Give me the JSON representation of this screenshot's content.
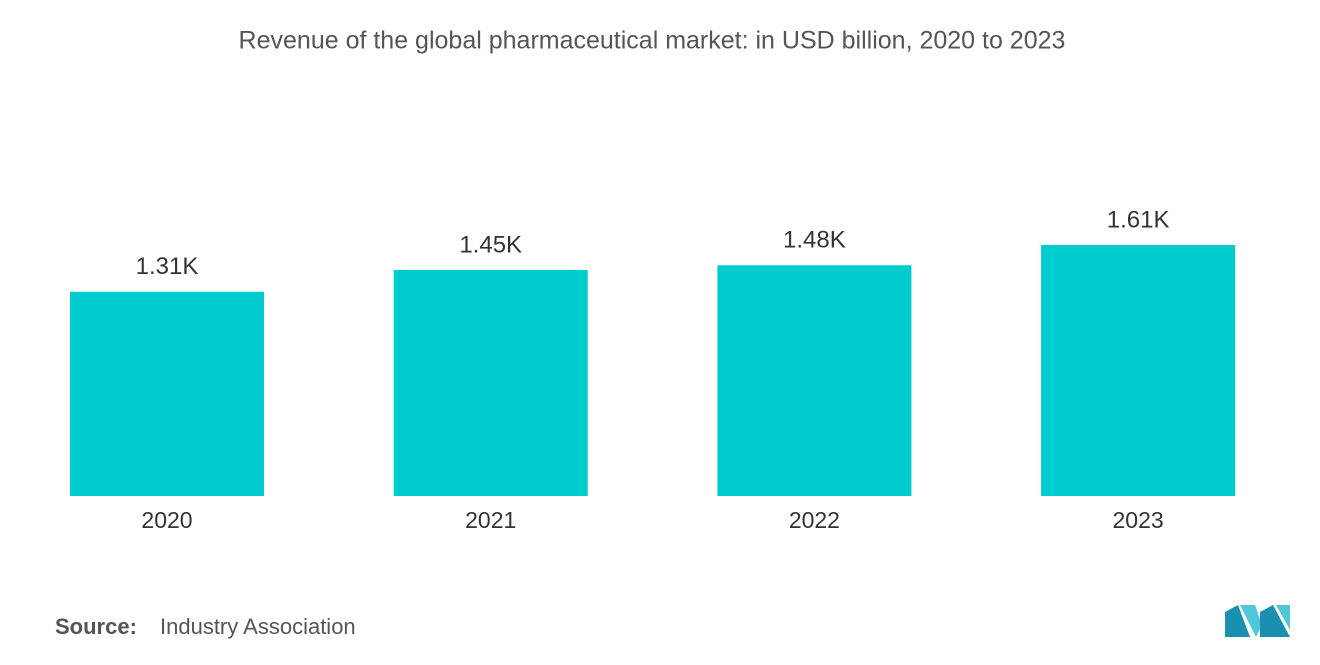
{
  "chart_data": {
    "type": "bar",
    "title": "Revenue of the global pharmaceutical market: in USD billion, 2020 to 2023",
    "categories": [
      "2020",
      "2021",
      "2022",
      "2023"
    ],
    "values": [
      1310,
      1450,
      1480,
      1610
    ],
    "value_labels": [
      "1.31K",
      "1.45K",
      "1.48K",
      "1.61K"
    ],
    "color": "#00ccd0"
  },
  "footer": {
    "source_label": "Source:",
    "source": "Industry Association"
  }
}
